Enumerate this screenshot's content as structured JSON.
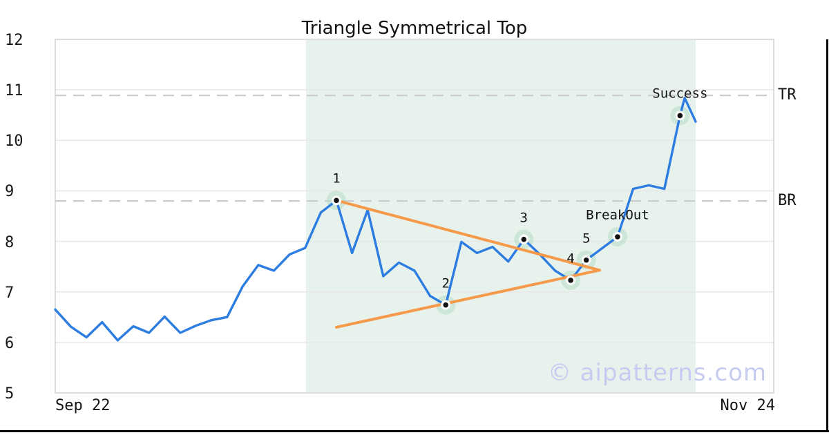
{
  "chart_data": {
    "type": "line",
    "title": "Triangle Symmetrical Top",
    "watermark": "© aipatterns.com",
    "xlim": [
      0,
      46
    ],
    "ylim": [
      5,
      12
    ],
    "y_ticks": [
      12,
      11,
      10,
      9,
      8,
      7,
      6,
      5
    ],
    "x_tick_labels": [
      "Sep 22",
      "Nov 24"
    ],
    "grid": "horizontal-only",
    "legend": "none",
    "series": [
      {
        "name": "price",
        "points": [
          [
            0,
            6.65
          ],
          [
            1,
            6.31
          ],
          [
            2,
            6.1
          ],
          [
            3,
            6.4
          ],
          [
            4,
            6.04
          ],
          [
            5,
            6.32
          ],
          [
            6,
            6.19
          ],
          [
            7,
            6.51
          ],
          [
            8,
            6.19
          ],
          [
            9,
            6.33
          ],
          [
            10,
            6.44
          ],
          [
            11,
            6.5
          ],
          [
            12,
            7.11
          ],
          [
            13,
            7.53
          ],
          [
            14,
            7.42
          ],
          [
            15,
            7.74
          ],
          [
            16,
            7.87
          ],
          [
            17,
            8.57
          ],
          [
            18,
            8.81
          ],
          [
            19,
            7.77
          ],
          [
            20,
            8.62
          ],
          [
            21,
            7.31
          ],
          [
            22,
            7.58
          ],
          [
            23,
            7.42
          ],
          [
            24,
            6.92
          ],
          [
            25,
            6.74
          ],
          [
            26,
            7.99
          ],
          [
            27,
            7.77
          ],
          [
            28,
            7.89
          ],
          [
            29,
            7.6
          ],
          [
            30,
            8.04
          ],
          [
            31,
            7.75
          ],
          [
            32,
            7.42
          ],
          [
            33,
            7.23
          ],
          [
            34,
            7.63
          ],
          [
            35,
            7.86
          ],
          [
            36,
            8.09
          ],
          [
            37,
            9.04
          ],
          [
            38,
            9.11
          ],
          [
            39,
            9.04
          ],
          [
            40,
            10.49
          ],
          [
            40.3,
            10.84
          ],
          [
            41,
            10.37
          ]
        ]
      }
    ],
    "pattern_region": {
      "x_start": 16.05,
      "x_end": 41,
      "y_start": 5,
      "y_end": 12
    },
    "trendlines": [
      {
        "name": "upper",
        "from": [
          18,
          8.81
        ],
        "to": [
          34.85,
          7.43
        ]
      },
      {
        "name": "lower",
        "from": [
          18,
          6.3
        ],
        "to": [
          34.85,
          7.43
        ]
      }
    ],
    "levels": [
      {
        "label": "TR",
        "value": 10.89
      },
      {
        "label": "BR",
        "value": 8.8
      }
    ],
    "annotations": [
      {
        "label": "1",
        "x": 18,
        "y": 8.81
      },
      {
        "label": "2",
        "x": 25,
        "y": 6.74
      },
      {
        "label": "3",
        "x": 30,
        "y": 8.04
      },
      {
        "label": "4",
        "x": 33,
        "y": 7.23
      },
      {
        "label": "5",
        "x": 34,
        "y": 7.63
      },
      {
        "label": "BreakOut",
        "x": 36,
        "y": 8.09
      },
      {
        "label": "Success",
        "x": 40,
        "y": 10.49
      }
    ],
    "colors": {
      "price_line": "#2d7ce1",
      "trend_line": "#f5994a",
      "pattern_region_fill": "#e8f2ec",
      "marker_halo": "#b5ddc6",
      "marker_core": "#111111",
      "marker_ring": "#ffffff",
      "gridline": "#e7e7e7",
      "dashed_level": "#cbcbcb",
      "plot_frame": "#dcdcdc",
      "edge_rule": "#000000",
      "text": "#151515",
      "watermark": "#c7cbf1"
    }
  }
}
